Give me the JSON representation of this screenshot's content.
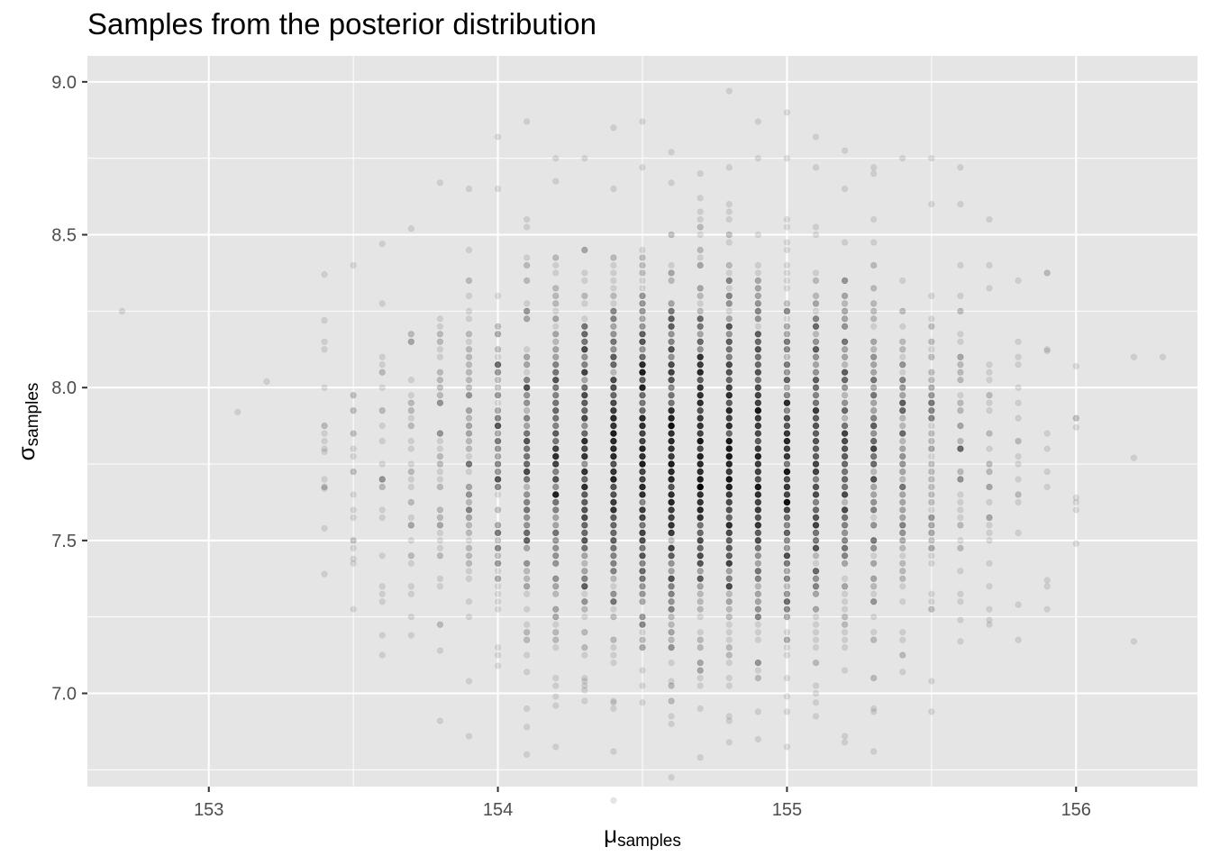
{
  "chart_data": {
    "type": "scatter",
    "title": "Samples from the posterior distribution",
    "xlabel": {
      "base": "μ",
      "subscript": "samples"
    },
    "ylabel": {
      "base": "σ",
      "subscript": "samples"
    },
    "xlim": [
      152.58,
      156.42
    ],
    "ylim": [
      6.695,
      9.085
    ],
    "x_ticks": [
      153,
      154,
      155,
      156
    ],
    "y_ticks": [
      7.0,
      7.5,
      8.0,
      8.5,
      9.0
    ],
    "y_tick_labels": [
      "7.0",
      "7.5",
      "8.0",
      "8.5",
      "9.0"
    ],
    "grid": true,
    "point_color": "#000000",
    "point_opacity": 0.1,
    "panel_background": "#e5e5e5",
    "gridline_color": "#ffffff",
    "grid_x_step": 0.1,
    "grid_y_step": 0.0333,
    "columns": [
      {
        "x": 152.7,
        "sd_y": 0,
        "n": 1,
        "extra": [
          8.25
        ]
      },
      {
        "x": 153.1,
        "sd_y": 0,
        "n": 1,
        "extra": [
          7.92
        ]
      },
      {
        "x": 153.2,
        "sd_y": 0,
        "n": 1,
        "extra": [
          8.02
        ]
      },
      {
        "x": 153.4,
        "sd_y": 0.25,
        "n": 10,
        "extra": [
          8.37,
          8.22,
          8.15,
          7.79,
          7.67,
          7.54,
          7.39
        ]
      },
      {
        "x": 153.5,
        "sd_y": 0.24,
        "n": 18,
        "extra": [
          8.4,
          7.44
        ]
      },
      {
        "x": 153.6,
        "sd_y": 0.25,
        "n": 24,
        "extra": [
          8.47,
          7.19
        ]
      },
      {
        "x": 153.7,
        "sd_y": 0.26,
        "n": 34,
        "extra": [
          8.52,
          7.19
        ]
      },
      {
        "x": 153.8,
        "sd_y": 0.27,
        "n": 50,
        "extra": [
          8.67,
          6.91,
          7.14
        ]
      },
      {
        "x": 153.9,
        "sd_y": 0.27,
        "n": 80,
        "extra": [
          8.65,
          6.86,
          7.04
        ]
      },
      {
        "x": 154.0,
        "sd_y": 0.28,
        "n": 120,
        "extra": [
          8.82,
          7.09,
          8.65
        ]
      },
      {
        "x": 154.1,
        "sd_y": 0.28,
        "n": 170,
        "extra": [
          8.87,
          6.89,
          7.07
        ]
      },
      {
        "x": 154.2,
        "sd_y": 0.28,
        "n": 230,
        "extra": [
          8.75,
          6.96,
          6.99
        ]
      },
      {
        "x": 154.3,
        "sd_y": 0.28,
        "n": 290,
        "extra": [
          8.75,
          7.01,
          7.04
        ]
      },
      {
        "x": 154.4,
        "sd_y": 0.28,
        "n": 350,
        "extra": [
          8.85,
          6.81,
          6.97
        ]
      },
      {
        "x": 154.5,
        "sd_y": 0.28,
        "n": 400,
        "extra": [
          8.87,
          8.72,
          6.97
        ]
      },
      {
        "x": 154.6,
        "sd_y": 0.28,
        "n": 420,
        "extra": [
          8.77,
          7.04,
          8.67
        ]
      },
      {
        "x": 154.7,
        "sd_y": 0.28,
        "n": 440,
        "extra": [
          8.7,
          6.79,
          8.62
        ]
      },
      {
        "x": 154.8,
        "sd_y": 0.28,
        "n": 420,
        "extra": [
          8.97,
          6.84,
          6.91,
          8.72
        ]
      },
      {
        "x": 154.9,
        "sd_y": 0.28,
        "n": 380,
        "extra": [
          8.87,
          8.75,
          6.94
        ]
      },
      {
        "x": 155.0,
        "sd_y": 0.28,
        "n": 330,
        "extra": [
          8.9,
          8.75,
          6.94,
          6.99
        ]
      },
      {
        "x": 155.1,
        "sd_y": 0.28,
        "n": 270,
        "extra": [
          8.82,
          8.72,
          6.97
        ]
      },
      {
        "x": 155.2,
        "sd_y": 0.28,
        "n": 210,
        "extra": [
          8.65,
          6.84,
          6.86
        ]
      },
      {
        "x": 155.3,
        "sd_y": 0.28,
        "n": 160,
        "extra": [
          8.72,
          6.81,
          6.94
        ]
      },
      {
        "x": 155.4,
        "sd_y": 0.28,
        "n": 115,
        "extra": [
          8.75,
          7.07
        ]
      },
      {
        "x": 155.5,
        "sd_y": 0.27,
        "n": 80,
        "extra": [
          8.6,
          6.94,
          7.04
        ]
      },
      {
        "x": 155.6,
        "sd_y": 0.27,
        "n": 50,
        "extra": [
          8.72,
          8.6,
          7.17,
          7.24
        ]
      },
      {
        "x": 155.7,
        "sd_y": 0.26,
        "n": 30,
        "extra": [
          8.55,
          7.24
        ]
      },
      {
        "x": 155.8,
        "sd_y": 0.26,
        "n": 16,
        "extra": [
          8.35,
          7.29
        ]
      },
      {
        "x": 155.9,
        "sd_y": 0.25,
        "n": 9,
        "extra": [
          8.12,
          7.37
        ]
      },
      {
        "x": 156.0,
        "sd_y": 0.25,
        "n": 4,
        "extra": [
          8.07,
          7.49,
          7.87,
          7.64
        ]
      },
      {
        "x": 156.2,
        "sd_y": 0,
        "n": 1,
        "extra": [
          8.1,
          7.77,
          7.17
        ]
      },
      {
        "x": 156.3,
        "sd_y": 0,
        "n": 1,
        "extra": [
          8.1
        ]
      }
    ],
    "y_center": 7.77,
    "y_step": 0.025
  }
}
